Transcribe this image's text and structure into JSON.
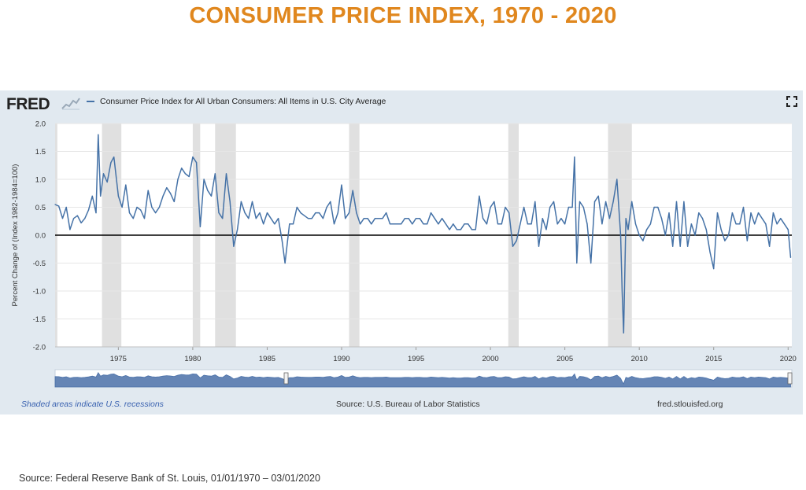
{
  "page": {
    "title": "CONSUMER PRICE INDEX, 1970 - 2020",
    "source_note": "Source: Federal Reserve Bank of St. Louis, 01/01/1970 – 03/01/2020"
  },
  "fred": {
    "logo_text": "FRED",
    "legend_label": "Consumer Price Index for All Urban Consumers: All Items in U.S. City Average",
    "footer_left": "Shaded areas indicate U.S. recessions",
    "footer_center": "Source: U.S. Bureau of Labor Statistics",
    "footer_right": "fred.stlouisfed.org"
  },
  "colors": {
    "title": "#e0871e",
    "series": "#4572a7",
    "recession": "#e0e0e0",
    "panel": "#e1e9f0",
    "navigator": "#4a70a8"
  },
  "chart_data": {
    "type": "line",
    "ylabel": "Percent Change of (Index 1982-1984=100)",
    "ylim": [
      -2.0,
      2.0
    ],
    "xlim": [
      1970.75,
      2020.25
    ],
    "yticks": [
      "2.0",
      "1.5",
      "1.0",
      "0.5",
      "0.0",
      "-0.5",
      "-1.0",
      "-1.5",
      "-2.0"
    ],
    "ytick_values": [
      2.0,
      1.5,
      1.0,
      0.5,
      0.0,
      -0.5,
      -1.0,
      -1.5,
      -2.0
    ],
    "xticks": [
      "1975",
      "1980",
      "1985",
      "1990",
      "1995",
      "2000",
      "2005",
      "2010",
      "2015",
      "2020"
    ],
    "xtick_values": [
      1975,
      1980,
      1985,
      1990,
      1995,
      2000,
      2005,
      2010,
      2015,
      2020
    ],
    "zero_line": true,
    "grid": "horizontal",
    "recessions": [
      [
        1970.0,
        1970.9
      ],
      [
        1973.9,
        1975.2
      ],
      [
        1980.0,
        1980.5
      ],
      [
        1981.5,
        1982.9
      ],
      [
        1990.5,
        1991.2
      ],
      [
        2001.2,
        2001.9
      ],
      [
        2007.9,
        2009.5
      ]
    ],
    "series": [
      {
        "name": "Consumer Price Index for All Urban Consumers: All Items in U.S. City Average",
        "points": [
          [
            1970.75,
            0.55
          ],
          [
            1971.0,
            0.52
          ],
          [
            1971.25,
            0.3
          ],
          [
            1971.5,
            0.5
          ],
          [
            1971.75,
            0.1
          ],
          [
            1972.0,
            0.3
          ],
          [
            1972.25,
            0.35
          ],
          [
            1972.5,
            0.22
          ],
          [
            1972.75,
            0.3
          ],
          [
            1973.0,
            0.45
          ],
          [
            1973.25,
            0.7
          ],
          [
            1973.5,
            0.4
          ],
          [
            1973.65,
            1.8
          ],
          [
            1973.8,
            0.7
          ],
          [
            1974.0,
            1.1
          ],
          [
            1974.25,
            0.95
          ],
          [
            1974.5,
            1.3
          ],
          [
            1974.7,
            1.4
          ],
          [
            1975.0,
            0.7
          ],
          [
            1975.25,
            0.5
          ],
          [
            1975.5,
            0.9
          ],
          [
            1975.75,
            0.4
          ],
          [
            1976.0,
            0.3
          ],
          [
            1976.25,
            0.5
          ],
          [
            1976.5,
            0.45
          ],
          [
            1976.75,
            0.3
          ],
          [
            1977.0,
            0.8
          ],
          [
            1977.25,
            0.5
          ],
          [
            1977.5,
            0.4
          ],
          [
            1977.75,
            0.5
          ],
          [
            1978.0,
            0.7
          ],
          [
            1978.25,
            0.85
          ],
          [
            1978.5,
            0.75
          ],
          [
            1978.75,
            0.6
          ],
          [
            1979.0,
            1.0
          ],
          [
            1979.25,
            1.2
          ],
          [
            1979.5,
            1.1
          ],
          [
            1979.75,
            1.05
          ],
          [
            1980.0,
            1.4
          ],
          [
            1980.25,
            1.3
          ],
          [
            1980.5,
            0.15
          ],
          [
            1980.75,
            1.0
          ],
          [
            1981.0,
            0.8
          ],
          [
            1981.25,
            0.7
          ],
          [
            1981.5,
            1.1
          ],
          [
            1981.75,
            0.4
          ],
          [
            1982.0,
            0.3
          ],
          [
            1982.25,
            1.1
          ],
          [
            1982.5,
            0.6
          ],
          [
            1982.75,
            -0.2
          ],
          [
            1983.0,
            0.1
          ],
          [
            1983.25,
            0.6
          ],
          [
            1983.5,
            0.4
          ],
          [
            1983.75,
            0.3
          ],
          [
            1984.0,
            0.6
          ],
          [
            1984.25,
            0.3
          ],
          [
            1984.5,
            0.4
          ],
          [
            1984.75,
            0.2
          ],
          [
            1985.0,
            0.4
          ],
          [
            1985.25,
            0.3
          ],
          [
            1985.5,
            0.2
          ],
          [
            1985.75,
            0.3
          ],
          [
            1986.0,
            -0.1
          ],
          [
            1986.2,
            -0.5
          ],
          [
            1986.5,
            0.2
          ],
          [
            1986.75,
            0.2
          ],
          [
            1987.0,
            0.5
          ],
          [
            1987.25,
            0.4
          ],
          [
            1987.5,
            0.35
          ],
          [
            1987.75,
            0.3
          ],
          [
            1988.0,
            0.3
          ],
          [
            1988.25,
            0.4
          ],
          [
            1988.5,
            0.4
          ],
          [
            1988.75,
            0.3
          ],
          [
            1989.0,
            0.5
          ],
          [
            1989.25,
            0.6
          ],
          [
            1989.5,
            0.2
          ],
          [
            1989.75,
            0.4
          ],
          [
            1990.0,
            0.9
          ],
          [
            1990.25,
            0.3
          ],
          [
            1990.5,
            0.4
          ],
          [
            1990.75,
            0.8
          ],
          [
            1991.0,
            0.4
          ],
          [
            1991.25,
            0.2
          ],
          [
            1991.5,
            0.3
          ],
          [
            1991.75,
            0.3
          ],
          [
            1992.0,
            0.2
          ],
          [
            1992.25,
            0.3
          ],
          [
            1992.5,
            0.3
          ],
          [
            1992.75,
            0.3
          ],
          [
            1993.0,
            0.4
          ],
          [
            1993.25,
            0.2
          ],
          [
            1993.5,
            0.2
          ],
          [
            1993.75,
            0.2
          ],
          [
            1994.0,
            0.2
          ],
          [
            1994.25,
            0.3
          ],
          [
            1994.5,
            0.3
          ],
          [
            1994.75,
            0.2
          ],
          [
            1995.0,
            0.3
          ],
          [
            1995.25,
            0.3
          ],
          [
            1995.5,
            0.2
          ],
          [
            1995.75,
            0.2
          ],
          [
            1996.0,
            0.4
          ],
          [
            1996.25,
            0.3
          ],
          [
            1996.5,
            0.2
          ],
          [
            1996.75,
            0.3
          ],
          [
            1997.0,
            0.2
          ],
          [
            1997.25,
            0.1
          ],
          [
            1997.5,
            0.2
          ],
          [
            1997.75,
            0.1
          ],
          [
            1998.0,
            0.1
          ],
          [
            1998.25,
            0.2
          ],
          [
            1998.5,
            0.2
          ],
          [
            1998.75,
            0.1
          ],
          [
            1999.0,
            0.1
          ],
          [
            1999.25,
            0.7
          ],
          [
            1999.5,
            0.3
          ],
          [
            1999.75,
            0.2
          ],
          [
            2000.0,
            0.5
          ],
          [
            2000.25,
            0.6
          ],
          [
            2000.5,
            0.2
          ],
          [
            2000.75,
            0.2
          ],
          [
            2001.0,
            0.5
          ],
          [
            2001.25,
            0.4
          ],
          [
            2001.5,
            -0.2
          ],
          [
            2001.75,
            -0.1
          ],
          [
            2002.0,
            0.2
          ],
          [
            2002.25,
            0.5
          ],
          [
            2002.5,
            0.2
          ],
          [
            2002.75,
            0.2
          ],
          [
            2003.0,
            0.6
          ],
          [
            2003.25,
            -0.2
          ],
          [
            2003.5,
            0.3
          ],
          [
            2003.75,
            0.1
          ],
          [
            2004.0,
            0.5
          ],
          [
            2004.25,
            0.6
          ],
          [
            2004.5,
            0.2
          ],
          [
            2004.75,
            0.3
          ],
          [
            2005.0,
            0.2
          ],
          [
            2005.25,
            0.5
          ],
          [
            2005.5,
            0.5
          ],
          [
            2005.65,
            1.4
          ],
          [
            2005.8,
            -0.5
          ],
          [
            2006.0,
            0.6
          ],
          [
            2006.25,
            0.5
          ],
          [
            2006.5,
            0.2
          ],
          [
            2006.75,
            -0.5
          ],
          [
            2007.0,
            0.6
          ],
          [
            2007.25,
            0.7
          ],
          [
            2007.5,
            0.2
          ],
          [
            2007.75,
            0.6
          ],
          [
            2008.0,
            0.3
          ],
          [
            2008.25,
            0.6
          ],
          [
            2008.5,
            1.0
          ],
          [
            2008.75,
            0.0
          ],
          [
            2008.85,
            -1.0
          ],
          [
            2008.95,
            -1.75
          ],
          [
            2009.1,
            0.3
          ],
          [
            2009.25,
            0.1
          ],
          [
            2009.5,
            0.6
          ],
          [
            2009.75,
            0.2
          ],
          [
            2010.0,
            0.0
          ],
          [
            2010.25,
            -0.1
          ],
          [
            2010.5,
            0.1
          ],
          [
            2010.75,
            0.2
          ],
          [
            2011.0,
            0.5
          ],
          [
            2011.25,
            0.5
          ],
          [
            2011.5,
            0.3
          ],
          [
            2011.75,
            0.0
          ],
          [
            2012.0,
            0.4
          ],
          [
            2012.25,
            -0.2
          ],
          [
            2012.5,
            0.6
          ],
          [
            2012.75,
            -0.2
          ],
          [
            2013.0,
            0.6
          ],
          [
            2013.25,
            -0.2
          ],
          [
            2013.5,
            0.2
          ],
          [
            2013.75,
            0.0
          ],
          [
            2014.0,
            0.4
          ],
          [
            2014.25,
            0.3
          ],
          [
            2014.5,
            0.1
          ],
          [
            2014.75,
            -0.3
          ],
          [
            2015.0,
            -0.6
          ],
          [
            2015.25,
            0.4
          ],
          [
            2015.5,
            0.1
          ],
          [
            2015.75,
            -0.1
          ],
          [
            2016.0,
            0.0
          ],
          [
            2016.25,
            0.4
          ],
          [
            2016.5,
            0.2
          ],
          [
            2016.75,
            0.2
          ],
          [
            2017.0,
            0.5
          ],
          [
            2017.25,
            -0.1
          ],
          [
            2017.5,
            0.4
          ],
          [
            2017.75,
            0.2
          ],
          [
            2018.0,
            0.4
          ],
          [
            2018.25,
            0.3
          ],
          [
            2018.5,
            0.2
          ],
          [
            2018.75,
            -0.2
          ],
          [
            2019.0,
            0.4
          ],
          [
            2019.25,
            0.2
          ],
          [
            2019.5,
            0.3
          ],
          [
            2019.75,
            0.2
          ],
          [
            2020.0,
            0.1
          ],
          [
            2020.17,
            -0.4
          ]
        ]
      }
    ]
  }
}
